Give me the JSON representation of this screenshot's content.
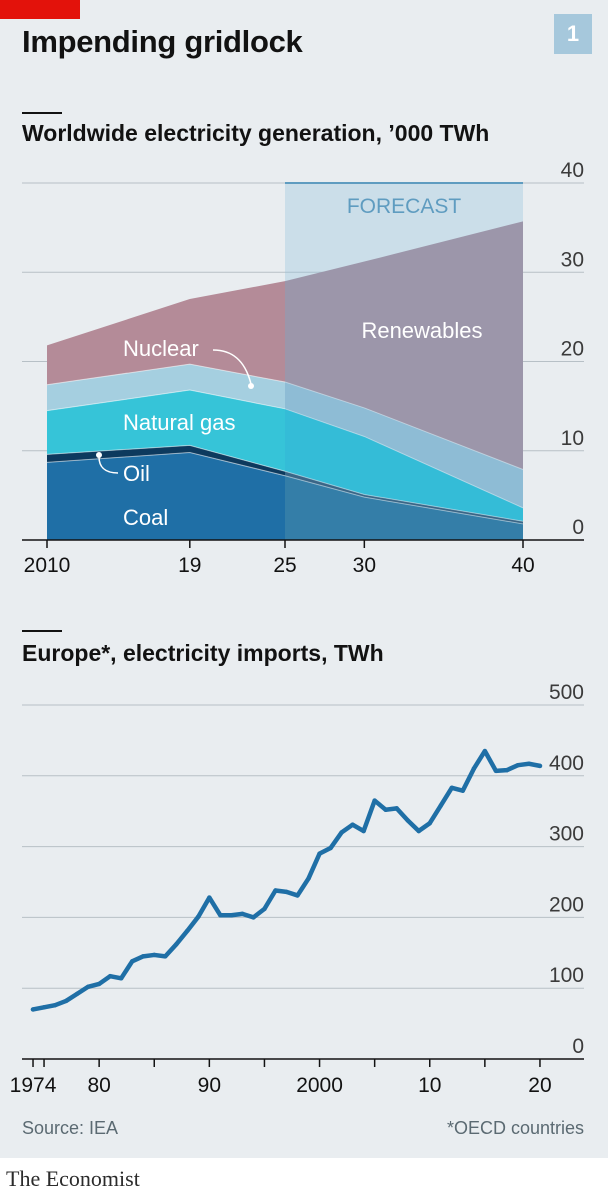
{
  "header": {
    "title": "Impending gridlock",
    "badge": "1"
  },
  "chart_data": [
    {
      "type": "area",
      "title": "Worldwide electricity generation, ’000 TWh",
      "x": [
        2010,
        2019,
        2025,
        2030,
        2040
      ],
      "x_tick_labels": [
        "2010",
        "19",
        "25",
        "30",
        "40"
      ],
      "ylim": [
        0,
        40
      ],
      "y_ticks": [
        "0",
        "10",
        "20",
        "30",
        "40"
      ],
      "stacked": true,
      "forecast": {
        "label": "FORECAST",
        "from": 2025,
        "to": 2040
      },
      "series": [
        {
          "name": "Coal",
          "values": [
            8.7,
            9.8,
            7.2,
            4.8,
            1.8
          ],
          "color": "#1f6fa6",
          "forecast_color": "#005a8c"
        },
        {
          "name": "Oil",
          "values": [
            0.9,
            0.8,
            0.5,
            0.3,
            0.3
          ],
          "color": "#0d3a5e",
          "forecast_color": "#0a3559"
        },
        {
          "name": "Natural gas",
          "values": [
            4.9,
            6.2,
            7.0,
            6.5,
            1.5
          ],
          "color": "#36c4d8",
          "forecast_color": "#00b8d4"
        },
        {
          "name": "Nuclear",
          "values": [
            2.9,
            2.9,
            3.0,
            3.2,
            4.3
          ],
          "color": "#a5cfe0",
          "forecast_color": "#8ab9d1"
        },
        {
          "name": "Renewables",
          "values": [
            4.4,
            7.3,
            11.3,
            16.4,
            27.8
          ],
          "color": "#b48b98",
          "forecast_color": "#a07f90"
        }
      ],
      "labels": {
        "nuclear": "Nuclear",
        "natural_gas": "Natural gas",
        "oil": "Oil",
        "coal": "Coal",
        "renewables": "Renewables"
      }
    },
    {
      "type": "line",
      "title": "Europe*, electricity imports, TWh",
      "x_start": 1974,
      "ylim": [
        0,
        500
      ],
      "y_ticks": [
        "0",
        "100",
        "200",
        "300",
        "400",
        "500"
      ],
      "x_tick_labels": [
        {
          "year": 1974,
          "label": "1974"
        },
        {
          "year": 1980,
          "label": "80"
        },
        {
          "year": 1990,
          "label": "90"
        },
        {
          "year": 2000,
          "label": "2000"
        },
        {
          "year": 2010,
          "label": "10"
        },
        {
          "year": 2020,
          "label": "20"
        }
      ],
      "x_range": [
        1973,
        2022
      ],
      "series": [
        {
          "name": "Electricity imports",
          "color": "#1f6fa6",
          "values": [
            70,
            73,
            76,
            82,
            92,
            102,
            106,
            117,
            114,
            138,
            145,
            147,
            145,
            162,
            181,
            201,
            228,
            203,
            203,
            205,
            200,
            212,
            238,
            236,
            231,
            255,
            290,
            298,
            320,
            331,
            322,
            365,
            352,
            354,
            337,
            322,
            333,
            358,
            383,
            379,
            410,
            435,
            407,
            408,
            415,
            417,
            414
          ]
        }
      ]
    }
  ],
  "footer": {
    "source": "Source: IEA",
    "note": "*OECD countries",
    "brand": "The Economist"
  }
}
